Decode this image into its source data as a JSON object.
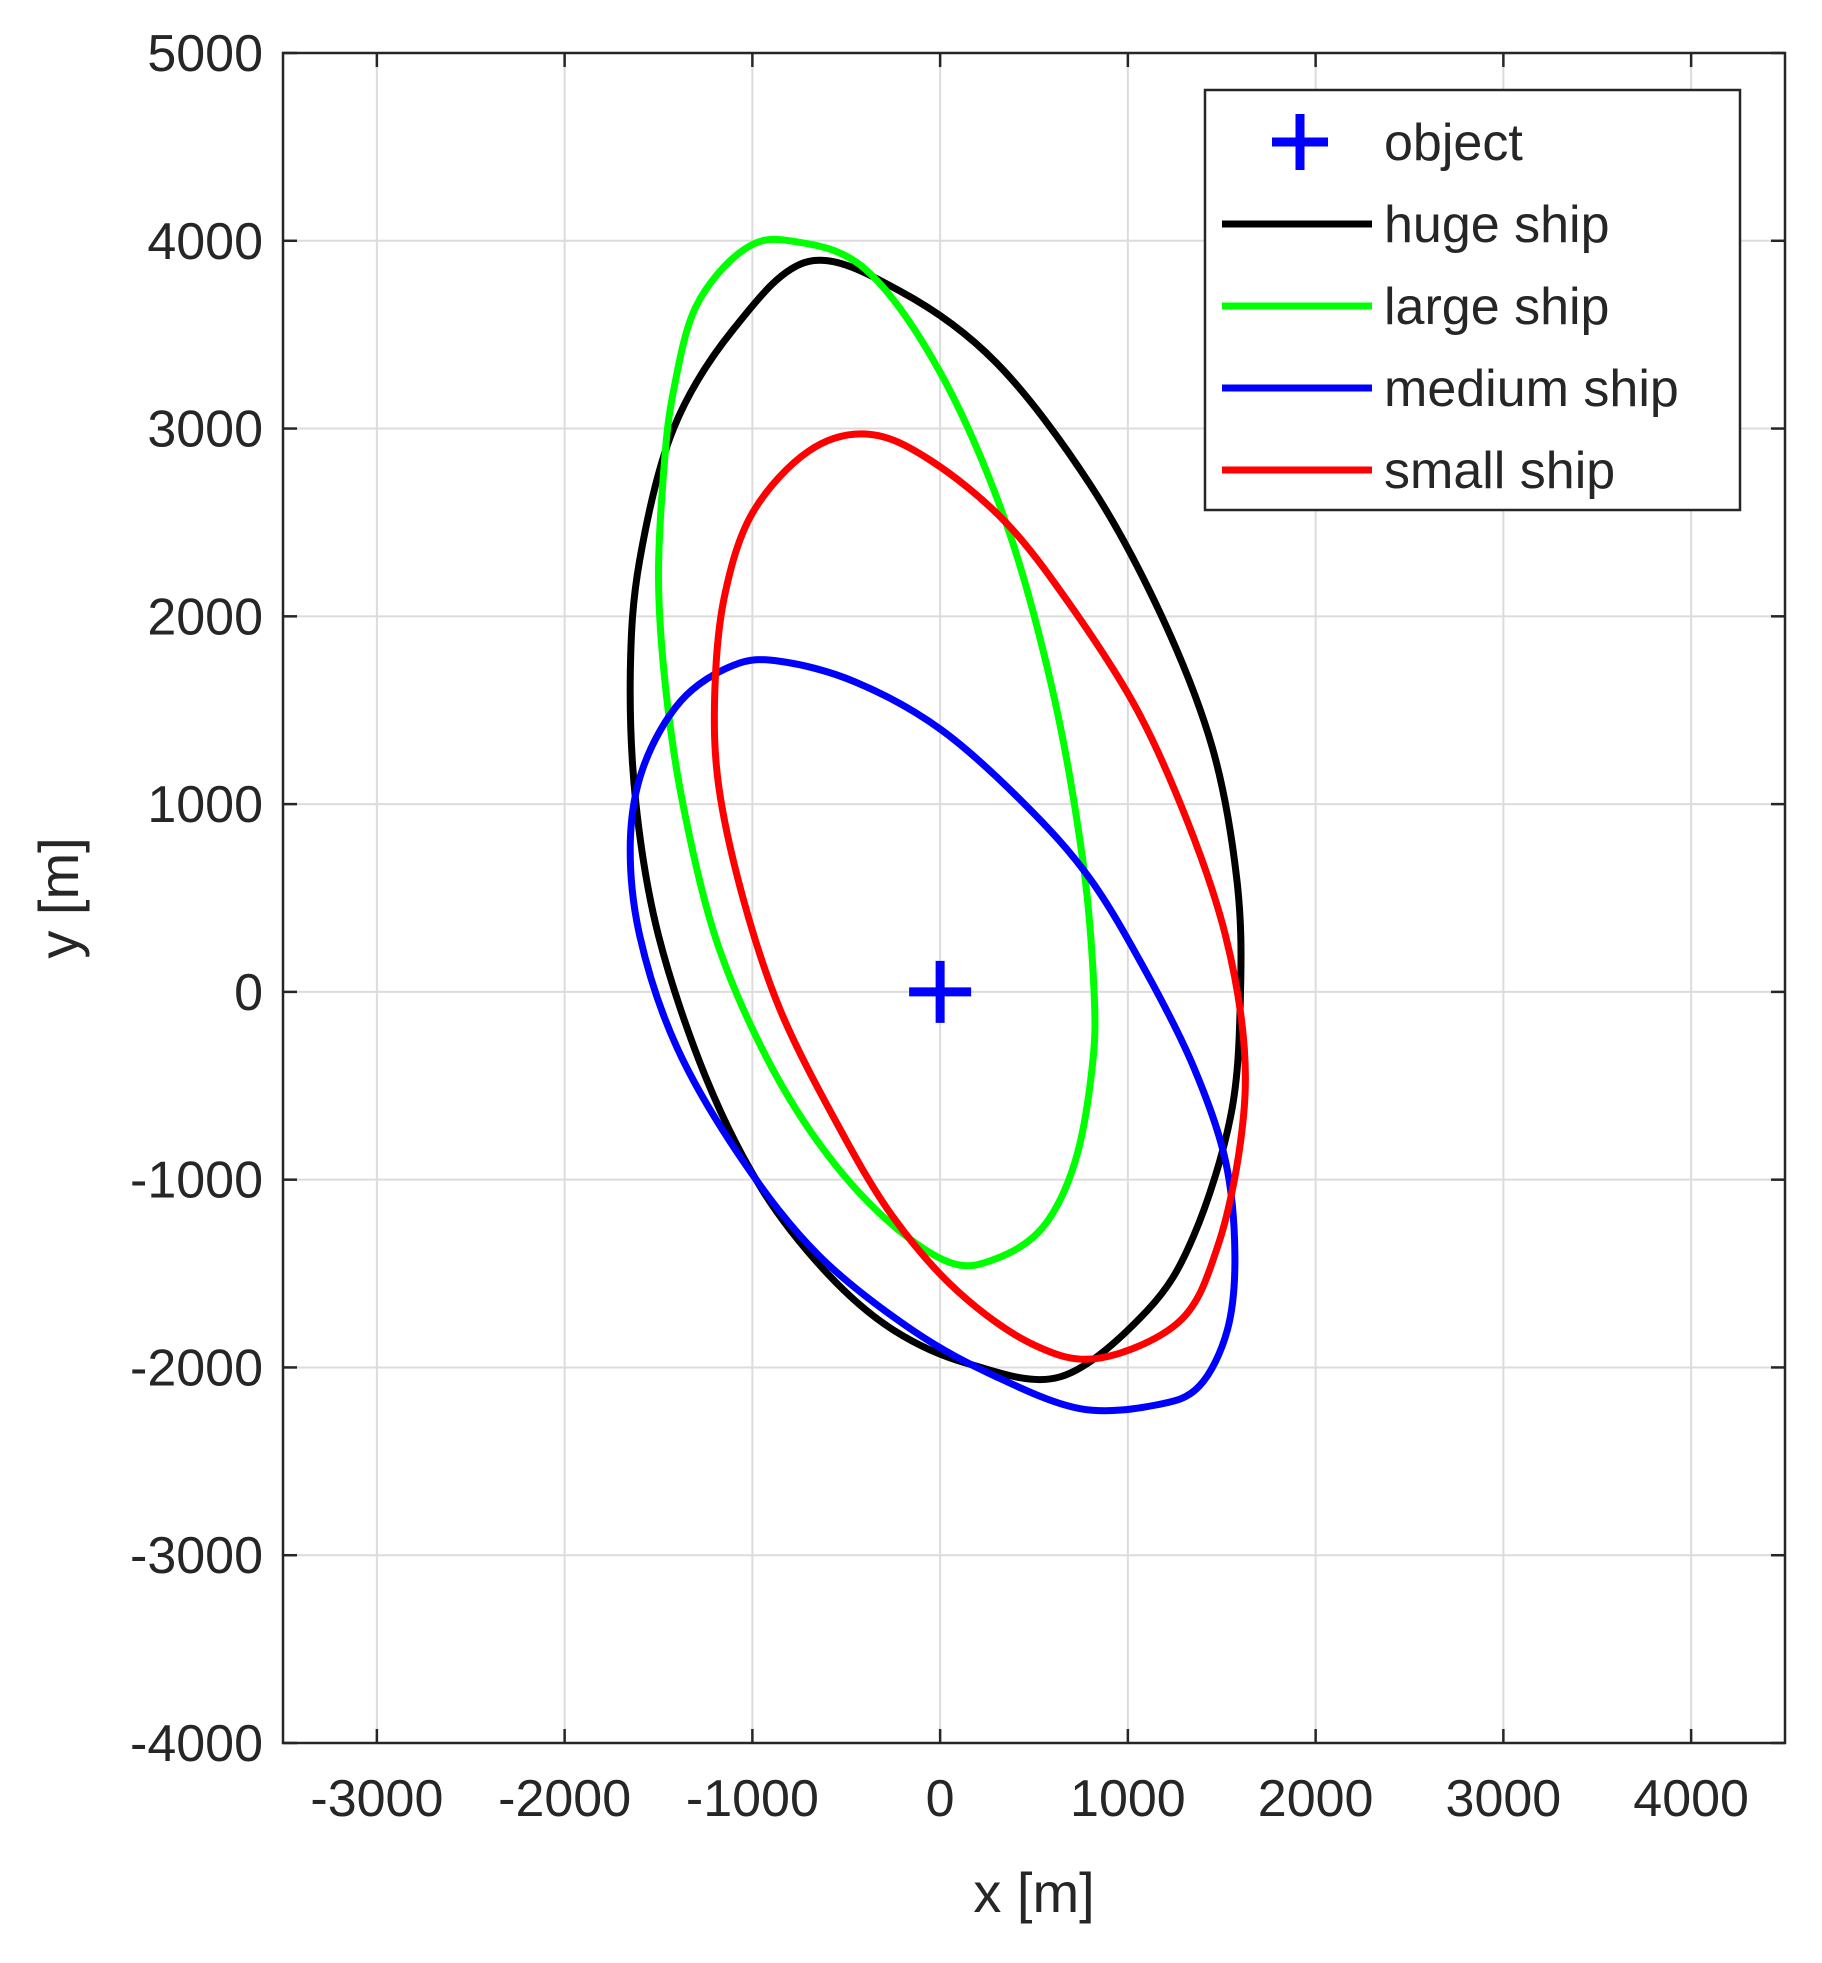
{
  "chart_data": {
    "type": "line",
    "xlabel": "x [m]",
    "ylabel": "y [m]",
    "xlim": [
      -3500,
      4500
    ],
    "ylim": [
      -4000,
      5000
    ],
    "xticks": [
      -3000,
      -2000,
      -1000,
      0,
      1000,
      2000,
      3000,
      4000
    ],
    "yticks": [
      -4000,
      -3000,
      -2000,
      -1000,
      0,
      1000,
      2000,
      3000,
      4000,
      5000
    ],
    "grid": true,
    "legend_position": "top-right",
    "object": {
      "name": "object",
      "x": 0,
      "y": 0,
      "marker": "plus",
      "color": "#0000ff"
    },
    "series": [
      {
        "name": "huge ship",
        "color": "#000000",
        "x": [
          -700,
          -210,
          300,
          800,
          1180,
          1450,
          1580,
          1600,
          1550,
          1350,
          1100,
          640,
          150,
          -250,
          -600,
          -950,
          -1250,
          -1500,
          -1620,
          -1650,
          -1600,
          -1420,
          -1100,
          -700
        ],
        "y": [
          3890,
          3730,
          3350,
          2700,
          2000,
          1300,
          600,
          0,
          -650,
          -1300,
          -1700,
          -2050,
          -1980,
          -1800,
          -1500,
          -1050,
          -450,
          300,
          1000,
          1700,
          2300,
          3000,
          3530,
          3890
        ]
      },
      {
        "name": "large ship",
        "color": "#00ff00",
        "x": [
          -800,
          -400,
          0,
          350,
          600,
          760,
          820,
          810,
          720,
          550,
          300,
          50,
          -300,
          -650,
          -950,
          -1200,
          -1370,
          -1460,
          -1500,
          -1470,
          -1420,
          -1300,
          -1050,
          -800
        ],
        "y": [
          4000,
          3850,
          3300,
          2500,
          1600,
          700,
          0,
          -400,
          -900,
          -1250,
          -1420,
          -1440,
          -1200,
          -800,
          -300,
          300,
          1000,
          1600,
          2200,
          2800,
          3200,
          3650,
          3950,
          4000
        ]
      },
      {
        "name": "medium ship",
        "color": "#0000ff",
        "x": [
          -850,
          -450,
          0,
          450,
          800,
          1100,
          1350,
          1520,
          1570,
          1530,
          1380,
          1150,
          750,
          300,
          -150,
          -650,
          -1050,
          -1400,
          -1600,
          -1650,
          -1580,
          -1380,
          -1100,
          -850
        ],
        "y": [
          1760,
          1650,
          1400,
          1000,
          600,
          100,
          -400,
          -900,
          -1400,
          -1800,
          -2100,
          -2200,
          -2220,
          -2050,
          -1800,
          -1400,
          -900,
          -300,
          300,
          800,
          1200,
          1550,
          1740,
          1760
        ]
      },
      {
        "name": "small ship",
        "color": "#ff0000",
        "x": [
          -380,
          -50,
          350,
          700,
          1050,
          1320,
          1520,
          1620,
          1600,
          1480,
          1280,
          850,
          500,
          100,
          -250,
          -550,
          -850,
          -1050,
          -1180,
          -1200,
          -1150,
          -1000,
          -700,
          -380
        ],
        "y": [
          2970,
          2830,
          2500,
          2050,
          1500,
          900,
          300,
          -300,
          -800,
          -1350,
          -1750,
          -1950,
          -1880,
          -1600,
          -1200,
          -700,
          -100,
          500,
          1100,
          1600,
          2100,
          2550,
          2880,
          2970
        ]
      }
    ]
  }
}
